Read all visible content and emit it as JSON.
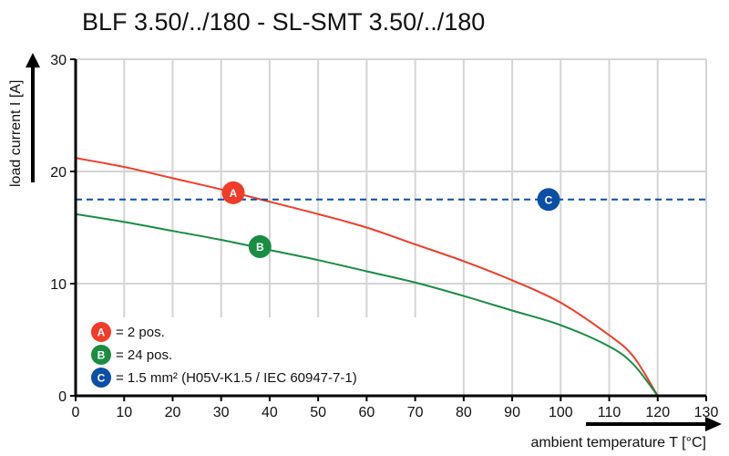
{
  "chart_data": {
    "type": "line",
    "title": "BLF 3.50/../180 - SL-SMT 3.50/../180",
    "xlabel": "ambient temperature T [°C]",
    "ylabel": "load current I [A]",
    "xlim": [
      0,
      130
    ],
    "ylim": [
      0,
      30
    ],
    "xticks": [
      0,
      10,
      20,
      30,
      40,
      50,
      60,
      70,
      80,
      90,
      100,
      110,
      120,
      130
    ],
    "yticks": [
      0,
      10,
      20,
      30
    ],
    "grid": true,
    "legend_position": "bottom-left",
    "series": [
      {
        "marker": "A",
        "label": "= 2 pos.",
        "color": "#f03c28",
        "x": [
          0,
          10,
          20,
          30,
          40,
          50,
          60,
          70,
          80,
          90,
          100,
          110,
          115,
          120
        ],
        "y": [
          21.2,
          20.4,
          19.4,
          18.4,
          17.3,
          16.2,
          15.0,
          13.5,
          12.0,
          10.3,
          8.3,
          5.4,
          3.5,
          0
        ]
      },
      {
        "marker": "B",
        "label": "= 24 pos.",
        "color": "#1a8c44",
        "x": [
          0,
          10,
          20,
          30,
          40,
          50,
          60,
          70,
          80,
          90,
          100,
          110,
          115,
          120
        ],
        "y": [
          16.2,
          15.5,
          14.7,
          13.9,
          13.0,
          12.1,
          11.1,
          10.1,
          8.9,
          7.6,
          6.3,
          4.4,
          2.8,
          0
        ]
      },
      {
        "marker": "C",
        "label": "= 1.5 mm² (H05V-K1.5 / IEC 60947-7-1)",
        "color": "#0d4ea6",
        "style": "dashed",
        "x": [
          0,
          130
        ],
        "y": [
          17.5,
          17.5
        ]
      }
    ],
    "marker_positions": [
      {
        "marker": "A",
        "x": 32.5,
        "y": 18.1
      },
      {
        "marker": "B",
        "x": 38,
        "y": 13.3
      },
      {
        "marker": "C",
        "x": 97.5,
        "y": 17.5
      }
    ]
  }
}
